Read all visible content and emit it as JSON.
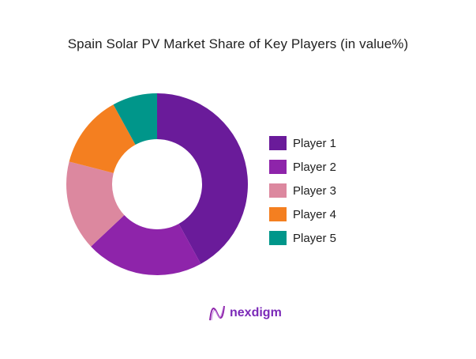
{
  "title": "Spain Solar PV Market Share of Key Players (in value%)",
  "chart_data": {
    "type": "pie",
    "subtype": "donut",
    "title": "Spain Solar PV Market Share of Key Players (in value%)",
    "categories": [
      "Player 1",
      "Player 2",
      "Player 3",
      "Player 4",
      "Player 5"
    ],
    "values": [
      42,
      21,
      16,
      13,
      8
    ],
    "colors": [
      "#6a1b9a",
      "#8e24aa",
      "#dc889f",
      "#f47f20",
      "#00968a"
    ],
    "legend_position": "right",
    "start_angle": "12 o'clock, clockwise"
  },
  "legend": [
    {
      "label": "Player 1",
      "color": "#6a1b9a"
    },
    {
      "label": "Player 2",
      "color": "#8e24aa"
    },
    {
      "label": "Player 3",
      "color": "#dc889f"
    },
    {
      "label": "Player 4",
      "color": "#f47f20"
    },
    {
      "label": "Player 5",
      "color": "#00968a"
    }
  ],
  "logo": {
    "text": "nexdigm"
  }
}
